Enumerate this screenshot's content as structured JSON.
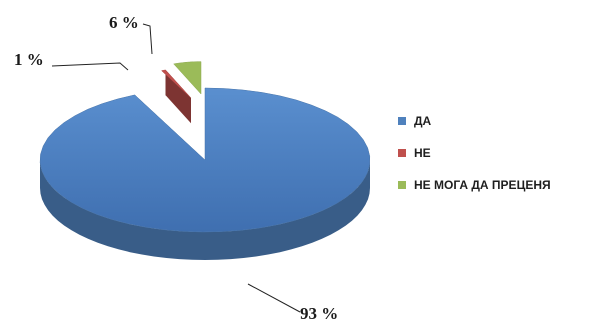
{
  "chart_data": {
    "type": "pie",
    "title": "",
    "categories": [
      "ДА",
      "НЕ",
      "НЕ МОГА ДА ПРЕЦЕНЯ"
    ],
    "values": [
      93,
      1,
      6
    ],
    "data_labels": [
      "93 %",
      "1 %",
      "6 %"
    ],
    "colors": [
      "#4f81bd",
      "#c0504d",
      "#9bbb59"
    ],
    "exploded": [
      false,
      true,
      true
    ],
    "style": "3d",
    "legend_position": "right"
  }
}
